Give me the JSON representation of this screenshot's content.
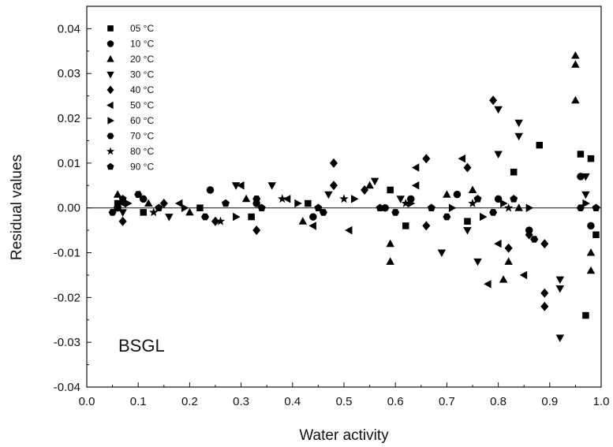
{
  "chart_data": {
    "type": "scatter",
    "xlabel": "Water activity",
    "ylabel": "Residual values",
    "xlim": [
      0.0,
      1.0
    ],
    "ylim": [
      -0.04,
      0.045
    ],
    "x_ticks": [
      0.0,
      0.1,
      0.2,
      0.3,
      0.4,
      0.5,
      0.6,
      0.7,
      0.8,
      0.9,
      1.0
    ],
    "y_ticks": [
      -0.04,
      -0.03,
      -0.02,
      -0.01,
      0.0,
      0.01,
      0.02,
      0.03,
      0.04
    ],
    "x_tick_labels": [
      "0.0",
      "0.1",
      "0.2",
      "0.3",
      "0.4",
      "0.5",
      "0.6",
      "0.7",
      "0.8",
      "0.9",
      "1.0"
    ],
    "y_tick_labels": [
      "-0.04",
      "-0.03",
      "-0.02",
      "-0.01",
      "0.00",
      "0.01",
      "0.02",
      "0.03",
      "0.04"
    ],
    "reference_line_y": 0.0,
    "legend_placement": "top-left",
    "annotation": "BSGL",
    "series": [
      {
        "name": "05 °C",
        "marker": "square",
        "points": [
          [
            0.06,
            0.001
          ],
          [
            0.11,
            -0.001
          ],
          [
            0.22,
            0.0
          ],
          [
            0.32,
            -0.002
          ],
          [
            0.43,
            0.001
          ],
          [
            0.59,
            0.004
          ],
          [
            0.62,
            -0.004
          ],
          [
            0.74,
            -0.003
          ],
          [
            0.83,
            0.008
          ],
          [
            0.88,
            0.014
          ],
          [
            0.96,
            0.012
          ],
          [
            0.98,
            0.011
          ],
          [
            0.97,
            -0.024
          ],
          [
            0.99,
            -0.006
          ]
        ]
      },
      {
        "name": "10 °C",
        "marker": "circle",
        "points": [
          [
            0.06,
            0.0
          ],
          [
            0.11,
            0.002
          ],
          [
            0.24,
            0.004
          ],
          [
            0.33,
            0.001
          ],
          [
            0.44,
            -0.002
          ],
          [
            0.58,
            0.0
          ],
          [
            0.63,
            0.002
          ],
          [
            0.72,
            0.003
          ],
          [
            0.8,
            0.002
          ],
          [
            0.86,
            -0.005
          ],
          [
            0.96,
            0.007
          ],
          [
            0.98,
            -0.004
          ]
        ]
      },
      {
        "name": "20 °C",
        "marker": "triangle-up",
        "points": [
          [
            0.06,
            0.003
          ],
          [
            0.12,
            0.001
          ],
          [
            0.2,
            -0.001
          ],
          [
            0.31,
            0.002
          ],
          [
            0.42,
            -0.003
          ],
          [
            0.55,
            0.005
          ],
          [
            0.59,
            -0.012
          ],
          [
            0.59,
            -0.008
          ],
          [
            0.7,
            0.003
          ],
          [
            0.75,
            0.004
          ],
          [
            0.81,
            -0.016
          ],
          [
            0.82,
            -0.012
          ],
          [
            0.84,
            0.0
          ],
          [
            0.95,
            0.034
          ],
          [
            0.95,
            0.032
          ],
          [
            0.95,
            0.024
          ],
          [
            0.98,
            -0.014
          ],
          [
            0.98,
            -0.01
          ]
        ]
      },
      {
        "name": "30 °C",
        "marker": "triangle-down",
        "points": [
          [
            0.07,
            -0.001
          ],
          [
            0.16,
            -0.002
          ],
          [
            0.29,
            0.005
          ],
          [
            0.36,
            0.005
          ],
          [
            0.47,
            0.003
          ],
          [
            0.56,
            0.006
          ],
          [
            0.61,
            0.002
          ],
          [
            0.69,
            -0.01
          ],
          [
            0.74,
            -0.005
          ],
          [
            0.76,
            -0.012
          ],
          [
            0.8,
            0.022
          ],
          [
            0.8,
            0.012
          ],
          [
            0.84,
            0.019
          ],
          [
            0.84,
            0.016
          ],
          [
            0.92,
            -0.016
          ],
          [
            0.92,
            -0.018
          ],
          [
            0.92,
            -0.029
          ],
          [
            0.97,
            0.007
          ],
          [
            0.97,
            0.003
          ]
        ]
      },
      {
        "name": "40 °C",
        "marker": "diamond",
        "points": [
          [
            0.07,
            -0.003
          ],
          [
            0.15,
            0.001
          ],
          [
            0.25,
            -0.003
          ],
          [
            0.33,
            -0.005
          ],
          [
            0.48,
            0.01
          ],
          [
            0.48,
            0.005
          ],
          [
            0.54,
            0.004
          ],
          [
            0.66,
            0.011
          ],
          [
            0.66,
            -0.004
          ],
          [
            0.74,
            0.009
          ],
          [
            0.79,
            0.024
          ],
          [
            0.82,
            -0.009
          ],
          [
            0.86,
            -0.006
          ],
          [
            0.89,
            -0.019
          ],
          [
            0.89,
            -0.022
          ],
          [
            0.89,
            -0.008
          ]
        ]
      },
      {
        "name": "50 °C",
        "marker": "triangle-left",
        "points": [
          [
            0.07,
            0.001
          ],
          [
            0.18,
            0.001
          ],
          [
            0.3,
            0.005
          ],
          [
            0.39,
            0.002
          ],
          [
            0.44,
            -0.004
          ],
          [
            0.51,
            -0.005
          ],
          [
            0.64,
            0.005
          ],
          [
            0.64,
            0.009
          ],
          [
            0.73,
            0.011
          ],
          [
            0.78,
            -0.017
          ],
          [
            0.8,
            -0.008
          ],
          [
            0.85,
            -0.015
          ]
        ]
      },
      {
        "name": "60 °C",
        "marker": "triangle-right",
        "points": [
          [
            0.08,
            0.001
          ],
          [
            0.19,
            0.0
          ],
          [
            0.29,
            -0.002
          ],
          [
            0.41,
            0.001
          ],
          [
            0.52,
            0.002
          ],
          [
            0.63,
            0.001
          ],
          [
            0.71,
            0.0
          ],
          [
            0.77,
            -0.002
          ],
          [
            0.81,
            0.001
          ],
          [
            0.86,
            0.0
          ],
          [
            0.97,
            0.001
          ]
        ]
      },
      {
        "name": "70 °C",
        "marker": "hexagon",
        "points": [
          [
            0.05,
            -0.001
          ],
          [
            0.1,
            0.003
          ],
          [
            0.23,
            -0.002
          ],
          [
            0.33,
            0.002
          ],
          [
            0.46,
            -0.001
          ],
          [
            0.6,
            -0.001
          ],
          [
            0.7,
            -0.002
          ],
          [
            0.79,
            -0.001
          ],
          [
            0.87,
            -0.007
          ],
          [
            0.96,
            0.0
          ]
        ]
      },
      {
        "name": "80 °C",
        "marker": "star",
        "points": [
          [
            0.06,
            0.0
          ],
          [
            0.13,
            -0.001
          ],
          [
            0.26,
            -0.003
          ],
          [
            0.38,
            0.002
          ],
          [
            0.5,
            0.002
          ],
          [
            0.62,
            0.001
          ],
          [
            0.75,
            0.001
          ],
          [
            0.82,
            0.0
          ]
        ]
      },
      {
        "name": "90 °C",
        "marker": "pentagon",
        "points": [
          [
            0.07,
            0.002
          ],
          [
            0.14,
            0.0
          ],
          [
            0.27,
            0.001
          ],
          [
            0.34,
            0.0
          ],
          [
            0.45,
            0.0
          ],
          [
            0.57,
            0.0
          ],
          [
            0.67,
            0.0
          ],
          [
            0.76,
            0.002
          ],
          [
            0.83,
            0.002
          ],
          [
            0.99,
            0.0
          ]
        ]
      }
    ]
  }
}
